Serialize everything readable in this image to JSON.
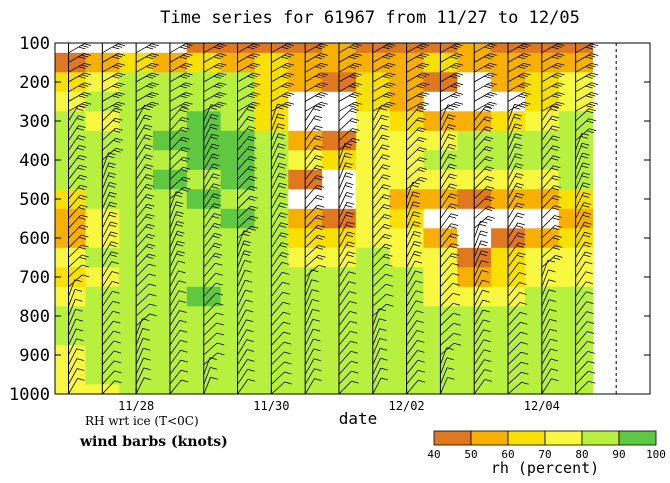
{
  "chart_data": {
    "type": "heatmap",
    "title": "Time series for 61967 from 11/27 to 12/05",
    "xlabel": "date",
    "ylabel": "",
    "x_tick_labels": [
      "11/28",
      "11/30",
      "12/02",
      "12/04"
    ],
    "x_tick_days": [
      1,
      3,
      5,
      7
    ],
    "y_axis": {
      "ticks": [
        100,
        200,
        300,
        400,
        500,
        600,
        700,
        800,
        900,
        1000
      ],
      "inverted": true
    },
    "ylim": [
      100,
      1000
    ],
    "notes": {
      "rh_note": "RH wrt ice (T<0C)",
      "barb_label": "wind barbs (knots)"
    },
    "colorbar": {
      "label": "rh (percent)",
      "ticks": [
        "40",
        "50",
        "60",
        "70",
        "80",
        "90",
        "100"
      ],
      "colors": [
        "#e07820",
        "#f8b000",
        "#f8e000",
        "#f8f840",
        "#b8f040",
        "#60c840",
        "#18e818"
      ]
    },
    "sounding_days": [
      0.0,
      0.5,
      1.0,
      1.5,
      2.0,
      2.5,
      3.0,
      3.5,
      4.0,
      4.5,
      5.0,
      5.5,
      6.0,
      6.5,
      7.0,
      7.5
    ],
    "rh_levels_hpa": [
      100,
      150,
      200,
      250,
      300,
      350,
      400,
      450,
      500,
      550,
      600,
      650,
      700,
      750,
      800,
      850,
      900,
      950,
      1000
    ],
    "rh_grid": [
      [
        30,
        45,
        60,
        72,
        80,
        82,
        84,
        82,
        60,
        55,
        58,
        72,
        68,
        78,
        82,
        80,
        78,
        76,
        70
      ],
      [
        35,
        55,
        78,
        82,
        78,
        80,
        84,
        86,
        80,
        72,
        78,
        82,
        75,
        82,
        84,
        86,
        82,
        80,
        78
      ],
      [
        35,
        60,
        80,
        85,
        88,
        86,
        85,
        88,
        86,
        88,
        85,
        82,
        80,
        80,
        84,
        88,
        86,
        84,
        82
      ],
      [
        35,
        55,
        82,
        85,
        88,
        90,
        88,
        90,
        88,
        86,
        84,
        88,
        86,
        86,
        88,
        84,
        86,
        84,
        84
      ],
      [
        40,
        60,
        82,
        86,
        90,
        90,
        90,
        88,
        90,
        88,
        86,
        86,
        88,
        90,
        88,
        86,
        84,
        86,
        84
      ],
      [
        40,
        55,
        80,
        86,
        88,
        90,
        90,
        90,
        88,
        90,
        88,
        86,
        86,
        86,
        88,
        86,
        86,
        86,
        86
      ],
      [
        45,
        60,
        65,
        60,
        65,
        80,
        84,
        82,
        85,
        88,
        86,
        84,
        85,
        86,
        84,
        88,
        84,
        86,
        84
      ],
      [
        45,
        55,
        50,
        35,
        30,
        55,
        70,
        45,
        30,
        50,
        68,
        72,
        80,
        84,
        86,
        84,
        86,
        88,
        86
      ],
      [
        50,
        55,
        45,
        25,
        20,
        45,
        65,
        35,
        20,
        40,
        62,
        74,
        80,
        82,
        86,
        84,
        86,
        86,
        86
      ],
      [
        45,
        55,
        60,
        60,
        70,
        72,
        74,
        76,
        72,
        76,
        78,
        80,
        82,
        80,
        84,
        82,
        82,
        84,
        86
      ],
      [
        40,
        55,
        58,
        50,
        65,
        76,
        75,
        72,
        58,
        68,
        78,
        76,
        80,
        82,
        84,
        84,
        82,
        84,
        86
      ],
      [
        45,
        60,
        45,
        35,
        50,
        78,
        80,
        78,
        55,
        30,
        55,
        72,
        75,
        78,
        82,
        82,
        84,
        84,
        86
      ],
      [
        50,
        58,
        30,
        25,
        55,
        80,
        82,
        72,
        45,
        20,
        25,
        40,
        55,
        76,
        84,
        84,
        82,
        84,
        86
      ],
      [
        45,
        55,
        50,
        30,
        60,
        80,
        82,
        75,
        50,
        30,
        40,
        62,
        68,
        78,
        84,
        84,
        82,
        84,
        86
      ],
      [
        45,
        55,
        62,
        68,
        75,
        80,
        82,
        75,
        55,
        35,
        50,
        70,
        74,
        80,
        84,
        86,
        84,
        84,
        86
      ],
      [
        40,
        50,
        70,
        78,
        82,
        86,
        88,
        80,
        62,
        55,
        64,
        76,
        78,
        84,
        86,
        84,
        86,
        86,
        88
      ]
    ]
  }
}
